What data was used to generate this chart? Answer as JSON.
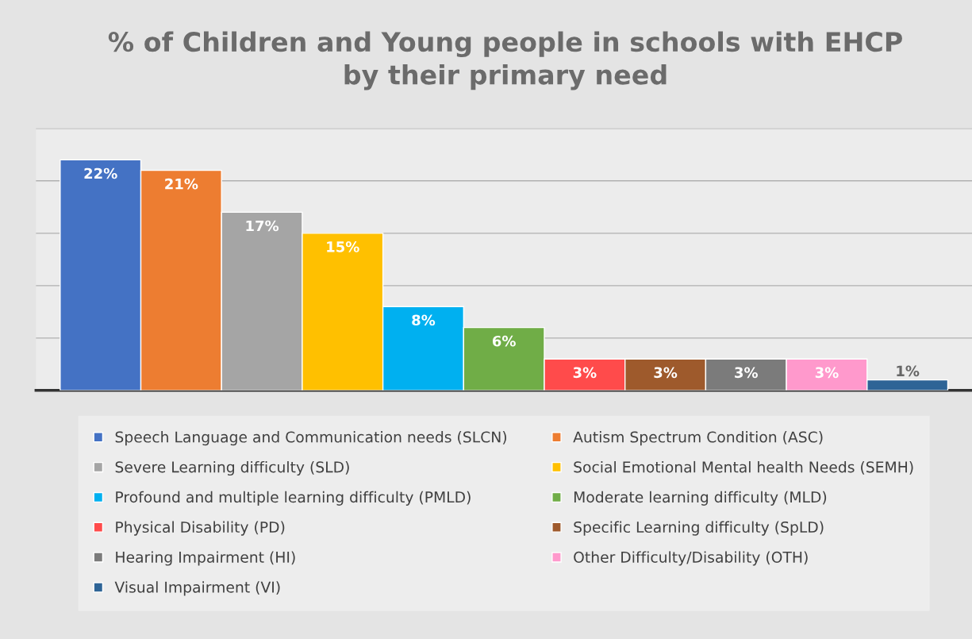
{
  "chart_data": {
    "type": "bar",
    "title": "% of Children and Young people in schools with EHCP\nby their primary need",
    "categories": [
      null
    ],
    "series": [
      {
        "name": "Speech Language and Communication needs (SLCN)",
        "color": "#4472c4",
        "values": [
          22
        ],
        "value_labels": [
          "22%"
        ]
      },
      {
        "name": "Autism Spectrum Condition (ASC)",
        "color": "#ed7d31",
        "values": [
          21
        ],
        "value_labels": [
          "21%"
        ]
      },
      {
        "name": "Severe Learning difficulty (SLD)",
        "color": "#a5a5a5",
        "values": [
          17
        ],
        "value_labels": [
          "17%"
        ]
      },
      {
        "name": "Social Emotional Mental health Needs (SEMH)",
        "color": "#ffc000",
        "values": [
          15
        ],
        "value_labels": [
          "15%"
        ]
      },
      {
        "name": "Profound and multiple learning difficulty (PMLD)",
        "color": "#00b0f0",
        "values": [
          8
        ],
        "value_labels": [
          "8%"
        ]
      },
      {
        "name": "Moderate learning difficulty (MLD)",
        "color": "#70ad47",
        "values": [
          6
        ],
        "value_labels": [
          "6%"
        ]
      },
      {
        "name": "Physical Disability (PD)",
        "color": "#ff4b4b",
        "values": [
          3
        ],
        "value_labels": [
          "3%"
        ]
      },
      {
        "name": "Specific Learning difficulty (SpLD)",
        "color": "#9e5a2c",
        "values": [
          3
        ],
        "value_labels": [
          "3%"
        ]
      },
      {
        "name": "Hearing Impairment (HI)",
        "color": "#7b7b7b",
        "values": [
          3
        ],
        "value_labels": [
          "3%"
        ]
      },
      {
        "name": "Other Difficulty/Disability (OTH)",
        "color": "#ff99cc",
        "values": [
          3
        ],
        "value_labels": [
          "3%"
        ]
      },
      {
        "name": "Visual Impairment (VI)",
        "color": "#2e6496",
        "values": [
          1
        ],
        "value_labels": [
          "1%"
        ]
      }
    ],
    "ylim": [
      0,
      25
    ],
    "yticks": [
      {
        "value": 5,
        "label": null
      },
      {
        "value": 10,
        "label": null
      },
      {
        "value": 15,
        "label": null
      },
      {
        "value": 20,
        "label": null
      },
      {
        "value": 25,
        "label": null
      }
    ],
    "grid": "y",
    "legend": "bottom"
  }
}
